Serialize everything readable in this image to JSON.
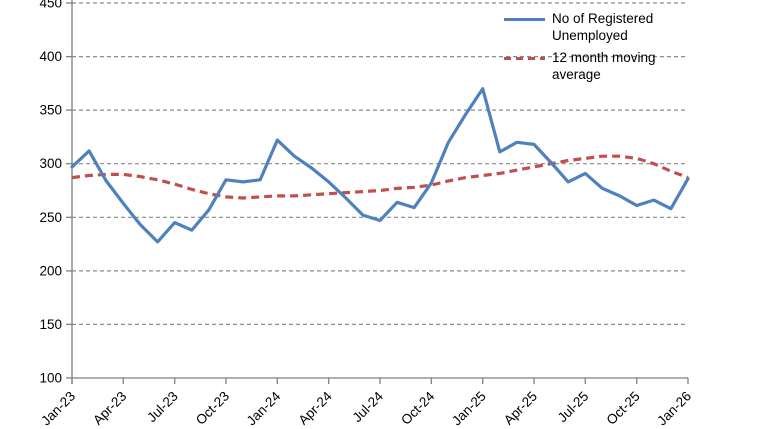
{
  "chart_data": {
    "type": "line",
    "title": "",
    "xlabel": "",
    "ylabel": "",
    "ylim": [
      100,
      450
    ],
    "ytick_interval": 50,
    "y_tick_labels": [
      "450",
      "400",
      "350",
      "300",
      "250",
      "200",
      "150",
      "100"
    ],
    "x_tick_labels": [
      "Jan-23",
      "Apr-23",
      "Jul-23",
      "Oct-23",
      "Jan-24",
      "Apr-24",
      "Jul-24",
      "Oct-24",
      "Jan-25",
      "Apr-25",
      "Jul-25",
      "Oct-25",
      "Jan-26"
    ],
    "x_tick_every_n_months": 3,
    "months": [
      "Jan-23",
      "Feb-23",
      "Mar-23",
      "Apr-23",
      "May-23",
      "Jun-23",
      "Jul-23",
      "Aug-23",
      "Sep-23",
      "Oct-23",
      "Nov-23",
      "Dec-23",
      "Jan-24",
      "Feb-24",
      "Mar-24",
      "Apr-24",
      "May-24",
      "Jun-24",
      "Jul-24",
      "Aug-24",
      "Sep-24",
      "Oct-24",
      "Nov-24",
      "Dec-24",
      "Jan-25",
      "Feb-25",
      "Mar-25",
      "Apr-25",
      "May-25",
      "Jun-25",
      "Jul-25",
      "Aug-25",
      "Sep-25",
      "Oct-25",
      "Nov-25",
      "Dec-25",
      "Jan-26"
    ],
    "grid": "horizontal dashed",
    "legend_position": "top-right inside plot",
    "axis_color": "#7f7f7f",
    "gridline_color": "#8a8a8a",
    "series": [
      {
        "name": "No of Registered Unemployed",
        "color": "#4F81BD",
        "line_style": "solid",
        "values": [
          297,
          312,
          284,
          263,
          243,
          227,
          245,
          238,
          257,
          285,
          283,
          285,
          322,
          307,
          296,
          283,
          268,
          252,
          247,
          264,
          259,
          282,
          320,
          346,
          370,
          311,
          320,
          318,
          301,
          283,
          291,
          277,
          270,
          261,
          266,
          258,
          286
        ]
      },
      {
        "name": "12 month moving average",
        "color": "#C0504D",
        "line_style": "dashed",
        "values": [
          287,
          289,
          290,
          290,
          288,
          285,
          281,
          276,
          272,
          269,
          268,
          269,
          270,
          270,
          271,
          272,
          273,
          274,
          275,
          277,
          278,
          280,
          284,
          287,
          289,
          291,
          294,
          297,
          300,
          303,
          305,
          307,
          307,
          305,
          300,
          293,
          287
        ]
      }
    ]
  }
}
